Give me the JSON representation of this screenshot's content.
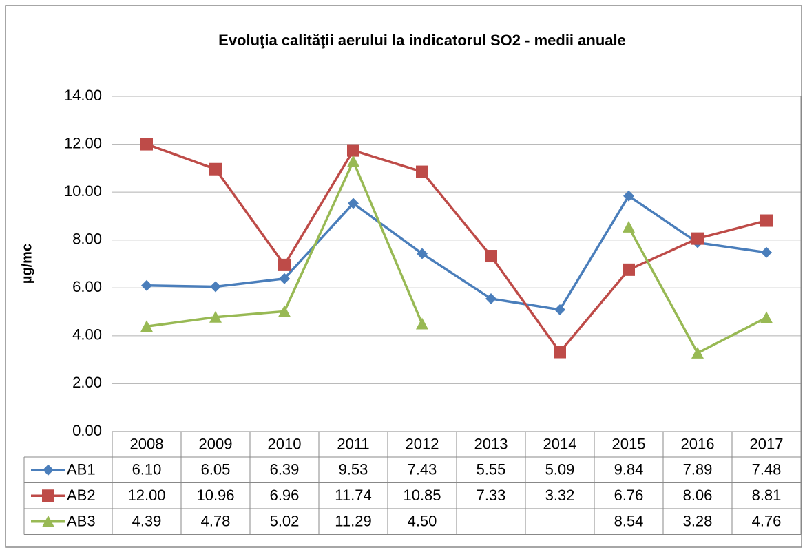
{
  "chart_data": {
    "type": "line",
    "title": "Evoluţia calităţii aerului la indicatorul SO2 - medii anuale",
    "y_label": "µg/mc",
    "categories": [
      "2008",
      "2009",
      "2010",
      "2011",
      "2012",
      "2013",
      "2014",
      "2015",
      "2016",
      "2017"
    ],
    "series": [
      {
        "name": "AB1",
        "color": "#4a7ebb",
        "marker": "diamond",
        "values": [
          6.1,
          6.05,
          6.39,
          9.53,
          7.43,
          5.55,
          5.09,
          9.84,
          7.89,
          7.48
        ],
        "value_labels": [
          "6.10",
          "6.05",
          "6.39",
          "9.53",
          "7.43",
          "5.55",
          "5.09",
          "9.84",
          "7.89",
          "7.48"
        ]
      },
      {
        "name": "AB2",
        "color": "#be4b48",
        "marker": "square",
        "values": [
          12,
          10.96,
          6.96,
          11.74,
          10.85,
          7.33,
          3.32,
          6.76,
          8.06,
          8.81
        ],
        "value_labels": [
          "12.00",
          "10.96",
          "6.96",
          "11.74",
          "10.85",
          "7.33",
          "3.32",
          "6.76",
          "8.06",
          "8.81"
        ]
      },
      {
        "name": "AB3",
        "color": "#98b954",
        "marker": "triangle",
        "values": [
          4.39,
          4.78,
          5.02,
          11.29,
          4.5,
          null,
          null,
          8.54,
          3.28,
          4.76
        ],
        "value_labels": [
          "4.39",
          "4.78",
          "5.02",
          "11.29",
          "4.50",
          null,
          null,
          "8.54",
          "3.28",
          "4.76"
        ]
      }
    ],
    "ylim": [
      0,
      14
    ],
    "yticks": [
      {
        "value": 0,
        "label": "0.00"
      },
      {
        "value": 2,
        "label": "2.00"
      },
      {
        "value": 4,
        "label": "4.00"
      },
      {
        "value": 6,
        "label": "6.00"
      },
      {
        "value": 8,
        "label": "8.00"
      },
      {
        "value": 10,
        "label": "10.00"
      },
      {
        "value": 12,
        "label": "12.00"
      },
      {
        "value": 14,
        "label": "14.00"
      }
    ],
    "grid": true
  }
}
